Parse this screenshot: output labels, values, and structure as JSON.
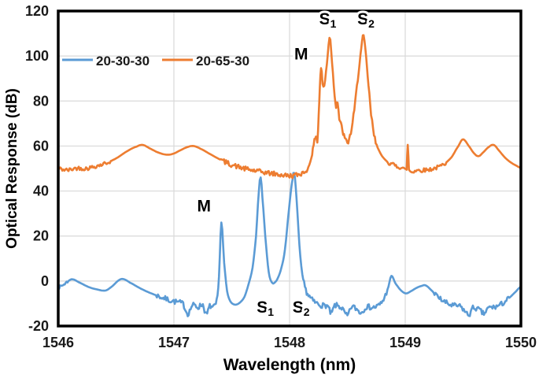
{
  "chart_data": {
    "type": "line",
    "title": "",
    "xlabel": "Wavelength (nm)",
    "ylabel": "Optical Response (dB)",
    "xlim": [
      1546,
      1550
    ],
    "ylim": [
      -20,
      120
    ],
    "x_ticks": [
      1546,
      1547,
      1548,
      1549,
      1550
    ],
    "y_ticks": [
      -20,
      0,
      20,
      40,
      60,
      80,
      100,
      120
    ],
    "grid": true,
    "grid_color": "#d9d9d9",
    "border_color": "#000000",
    "legend": {
      "position": "top-left-inside",
      "items": [
        {
          "label": "20-30-30",
          "color": "#5B9BD5"
        },
        {
          "label": "20-65-30",
          "color": "#ED7D31"
        }
      ]
    },
    "series": [
      {
        "name": "20-30-30",
        "color": "#5B9BD5",
        "points": [
          [
            1546.0,
            -3
          ],
          [
            1546.04,
            -1.8
          ],
          [
            1546.08,
            -0.3
          ],
          [
            1546.12,
            0.8
          ],
          [
            1546.18,
            -0.6
          ],
          [
            1546.26,
            -2.6
          ],
          [
            1546.34,
            -3.8
          ],
          [
            1546.41,
            -4.2
          ],
          [
            1546.47,
            -2.2
          ],
          [
            1546.52,
            0.2
          ],
          [
            1546.56,
            0.9
          ],
          [
            1546.62,
            -0.7
          ],
          [
            1546.7,
            -3.0
          ],
          [
            1546.78,
            -5.0
          ],
          [
            1546.88,
            -7.0
          ],
          [
            1546.98,
            -8.8
          ],
          [
            1547.08,
            -10.2
          ],
          [
            1547.12,
            -14.5
          ],
          [
            1547.16,
            -10.8
          ],
          [
            1547.21,
            -11.6
          ],
          [
            1547.25,
            -10.6
          ],
          [
            1547.28,
            -15.0
          ],
          [
            1547.31,
            -11.2
          ],
          [
            1547.34,
            -11.8
          ],
          [
            1547.37,
            -9.0
          ],
          [
            1547.39,
            2.0
          ],
          [
            1547.41,
            26.0
          ],
          [
            1547.435,
            8.0
          ],
          [
            1547.46,
            -4.5
          ],
          [
            1547.49,
            -9.2
          ],
          [
            1547.53,
            -10.5
          ],
          [
            1547.57,
            -9.6
          ],
          [
            1547.61,
            -7.0
          ],
          [
            1547.645,
            -1.5
          ],
          [
            1547.68,
            6.0
          ],
          [
            1547.71,
            20.0
          ],
          [
            1547.735,
            40.0
          ],
          [
            1547.75,
            46.0
          ],
          [
            1547.765,
            37.0
          ],
          [
            1547.79,
            20.0
          ],
          [
            1547.82,
            4.0
          ],
          [
            1547.85,
            -0.8
          ],
          [
            1547.875,
            -0.5
          ],
          [
            1547.9,
            1.5
          ],
          [
            1547.93,
            6.0
          ],
          [
            1547.96,
            14.0
          ],
          [
            1547.995,
            32.0
          ],
          [
            1548.025,
            45.0
          ],
          [
            1548.04,
            48.0
          ],
          [
            1548.06,
            37.0
          ],
          [
            1548.085,
            16.0
          ],
          [
            1548.11,
            3.0
          ],
          [
            1548.14,
            -4.0
          ],
          [
            1548.18,
            -7.5
          ],
          [
            1548.22,
            -9.5
          ],
          [
            1548.28,
            -10.8
          ],
          [
            1548.33,
            -11.2
          ],
          [
            1548.36,
            -14.5
          ],
          [
            1548.39,
            -11.0
          ],
          [
            1548.45,
            -12.0
          ],
          [
            1548.5,
            -15.5
          ],
          [
            1548.535,
            -11.5
          ],
          [
            1548.58,
            -12.5
          ],
          [
            1548.62,
            -14.0
          ],
          [
            1548.66,
            -11.5
          ],
          [
            1548.72,
            -11.8
          ],
          [
            1548.78,
            -10.5
          ],
          [
            1548.82,
            -7.5
          ],
          [
            1548.855,
            -2.5
          ],
          [
            1548.88,
            2.3
          ],
          [
            1548.915,
            -1.0
          ],
          [
            1548.96,
            -4.0
          ],
          [
            1549.005,
            -5.5
          ],
          [
            1549.05,
            -4.5
          ],
          [
            1549.1,
            -3.0
          ],
          [
            1549.14,
            -2.2
          ],
          [
            1549.175,
            -1.9
          ],
          [
            1549.22,
            -3.8
          ],
          [
            1549.27,
            -6.5
          ],
          [
            1549.33,
            -9.0
          ],
          [
            1549.4,
            -10.8
          ],
          [
            1549.48,
            -11.5
          ],
          [
            1549.55,
            -15.0
          ],
          [
            1549.585,
            -12.0
          ],
          [
            1549.64,
            -12.8
          ],
          [
            1549.68,
            -14.5
          ],
          [
            1549.72,
            -12.0
          ],
          [
            1549.78,
            -11.5
          ],
          [
            1549.84,
            -10.0
          ],
          [
            1549.9,
            -7.5
          ],
          [
            1549.95,
            -5.0
          ],
          [
            1550.0,
            -2.5
          ]
        ],
        "noise_zones": [
          [
            1546.0,
            1546.08,
            0.7
          ],
          [
            1546.85,
            1547.37,
            1.2
          ],
          [
            1548.12,
            1548.84,
            1.2
          ],
          [
            1549.25,
            1549.9,
            1.2
          ]
        ]
      },
      {
        "name": "20-65-30",
        "color": "#ED7D31",
        "points": [
          [
            1546.0,
            50.0
          ],
          [
            1546.08,
            49.3
          ],
          [
            1546.16,
            50.2
          ],
          [
            1546.24,
            50.0
          ],
          [
            1546.32,
            51.0
          ],
          [
            1546.4,
            52.2
          ],
          [
            1546.5,
            54.5
          ],
          [
            1546.6,
            57.8
          ],
          [
            1546.68,
            59.8
          ],
          [
            1546.73,
            60.5
          ],
          [
            1546.79,
            59.0
          ],
          [
            1546.86,
            57.2
          ],
          [
            1546.93,
            56.2
          ],
          [
            1546.99,
            56.5
          ],
          [
            1547.06,
            58.2
          ],
          [
            1547.12,
            59.6
          ],
          [
            1547.17,
            60.0
          ],
          [
            1547.23,
            58.8
          ],
          [
            1547.3,
            56.8
          ],
          [
            1547.38,
            54.5
          ],
          [
            1547.46,
            52.5
          ],
          [
            1547.54,
            51.0
          ],
          [
            1547.62,
            49.8
          ],
          [
            1547.72,
            48.8
          ],
          [
            1547.82,
            48.0
          ],
          [
            1547.92,
            47.2
          ],
          [
            1548.0,
            46.8
          ],
          [
            1548.05,
            47.0
          ],
          [
            1548.1,
            47.8
          ],
          [
            1548.14,
            49.0
          ],
          [
            1548.17,
            51.5
          ],
          [
            1548.195,
            56.0
          ],
          [
            1548.215,
            62.0
          ],
          [
            1548.228,
            65.0
          ],
          [
            1548.24,
            62.0
          ],
          [
            1548.252,
            74.0
          ],
          [
            1548.262,
            86.0
          ],
          [
            1548.272,
            95.0
          ],
          [
            1548.285,
            88.0
          ],
          [
            1548.3,
            86.5
          ],
          [
            1548.315,
            93.0
          ],
          [
            1548.33,
            101.0
          ],
          [
            1548.345,
            108.5
          ],
          [
            1548.36,
            103.0
          ],
          [
            1548.375,
            92.0
          ],
          [
            1548.39,
            83.0
          ],
          [
            1548.402,
            78.0
          ],
          [
            1548.415,
            80.0
          ],
          [
            1548.43,
            72.0
          ],
          [
            1548.45,
            68.5
          ],
          [
            1548.47,
            64.5
          ],
          [
            1548.5,
            61.5
          ],
          [
            1548.53,
            66.0
          ],
          [
            1548.56,
            76.0
          ],
          [
            1548.59,
            90.0
          ],
          [
            1548.62,
            103.0
          ],
          [
            1548.64,
            108.5
          ],
          [
            1548.662,
            99.0
          ],
          [
            1548.682,
            87.0
          ],
          [
            1548.705,
            74.0
          ],
          [
            1548.73,
            65.0
          ],
          [
            1548.76,
            59.5
          ],
          [
            1548.8,
            55.5
          ],
          [
            1548.85,
            52.8
          ],
          [
            1548.92,
            51.2
          ],
          [
            1548.98,
            50.3
          ],
          [
            1549.012,
            50.0
          ],
          [
            1549.022,
            60.5
          ],
          [
            1549.032,
            49.5
          ],
          [
            1549.1,
            49.2
          ],
          [
            1549.18,
            49.4
          ],
          [
            1549.26,
            50.2
          ],
          [
            1549.33,
            51.8
          ],
          [
            1549.4,
            55.0
          ],
          [
            1549.46,
            60.0
          ],
          [
            1549.5,
            63.0
          ],
          [
            1549.55,
            60.0
          ],
          [
            1549.6,
            56.5
          ],
          [
            1549.635,
            55.5
          ],
          [
            1549.67,
            57.0
          ],
          [
            1549.72,
            59.5
          ],
          [
            1549.765,
            60.5
          ],
          [
            1549.81,
            58.0
          ],
          [
            1549.86,
            55.0
          ],
          [
            1549.91,
            52.8
          ],
          [
            1549.96,
            51.3
          ],
          [
            1550.0,
            50.3
          ]
        ],
        "noise_zones": [
          [
            1546.0,
            1546.45,
            0.9
          ],
          [
            1547.4,
            1548.16,
            1.1
          ],
          [
            1548.2,
            1548.75,
            1.2
          ],
          [
            1548.85,
            1549.35,
            0.9
          ]
        ]
      }
    ],
    "annotations": [
      {
        "series": "20-30-30",
        "main": "M",
        "sub": "",
        "x": 1547.26,
        "y": 31
      },
      {
        "series": "20-30-30",
        "main": "S",
        "sub": "1",
        "x": 1547.79,
        "y": -14
      },
      {
        "series": "20-30-30",
        "main": "S",
        "sub": "2",
        "x": 1548.1,
        "y": -14
      },
      {
        "series": "20-65-30",
        "main": "M",
        "sub": "",
        "x": 1548.1,
        "y": 98.5
      },
      {
        "series": "20-65-30",
        "main": "S",
        "sub": "1",
        "x": 1548.33,
        "y": 114
      },
      {
        "series": "20-65-30",
        "main": "S",
        "sub": "2",
        "x": 1548.66,
        "y": 114
      }
    ]
  }
}
